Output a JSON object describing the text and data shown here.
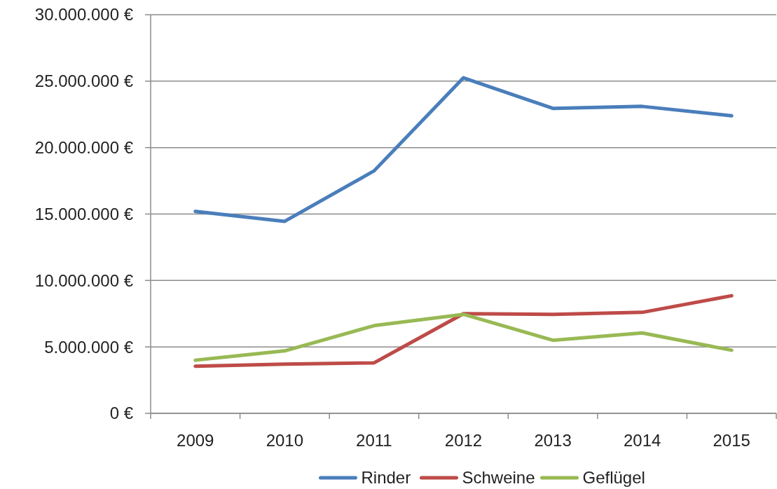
{
  "chart_data": {
    "type": "line",
    "categories": [
      "2009",
      "2010",
      "2011",
      "2012",
      "2013",
      "2014",
      "2015"
    ],
    "series": [
      {
        "name": "Rinder",
        "color": "#4a7ebb",
        "values": [
          15200000,
          14450000,
          18250000,
          25250000,
          22950000,
          23100000,
          22400000
        ]
      },
      {
        "name": "Schweine",
        "color": "#be4b48",
        "values": [
          3550000,
          3700000,
          3800000,
          7500000,
          7450000,
          7600000,
          8850000
        ]
      },
      {
        "name": "Geflügel",
        "color": "#98b954",
        "values": [
          4000000,
          4700000,
          6600000,
          7450000,
          5500000,
          6050000,
          4750000
        ]
      }
    ],
    "ylim": [
      0,
      30000000
    ],
    "yticks": [
      {
        "value": 0,
        "label": "0 €"
      },
      {
        "value": 5000000,
        "label": "5.000.000 €"
      },
      {
        "value": 10000000,
        "label": "10.000.000 €"
      },
      {
        "value": 15000000,
        "label": "15.000.000 €"
      },
      {
        "value": 20000000,
        "label": "20.000.000 €"
      },
      {
        "value": 25000000,
        "label": "25.000.000 €"
      },
      {
        "value": 30000000,
        "label": "30.000.000 €"
      }
    ],
    "grid": "y",
    "legend": "bottom",
    "marker": "none",
    "line_style": "solid"
  }
}
